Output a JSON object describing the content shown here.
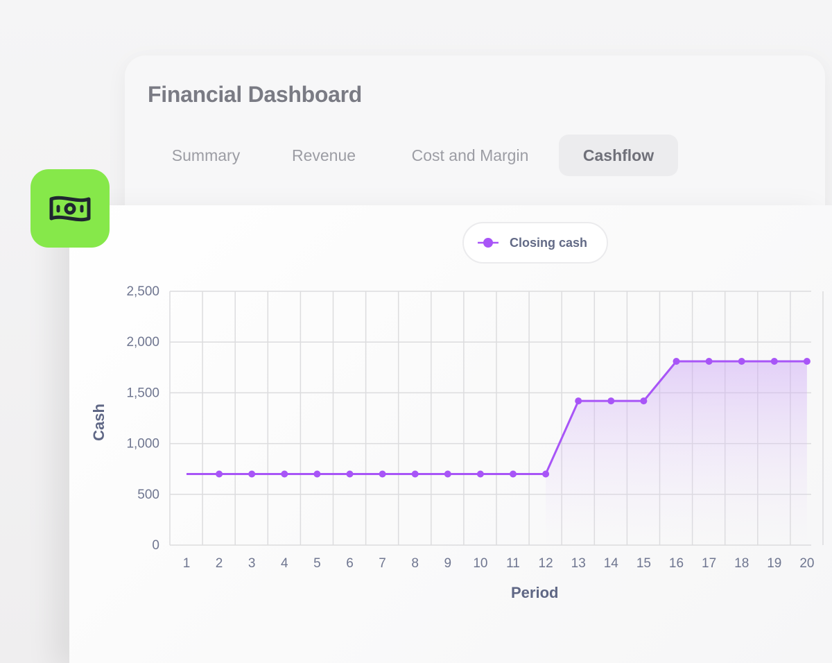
{
  "dashboard": {
    "title": "Financial Dashboard",
    "tabs": [
      {
        "label": "Summary",
        "active": false
      },
      {
        "label": "Revenue",
        "active": false
      },
      {
        "label": "Cost and Margin",
        "active": false
      },
      {
        "label": "Cashflow",
        "active": true
      }
    ],
    "app_icon": "money-bill-icon"
  },
  "colors": {
    "accent": "#a855f7",
    "icon_bg": "#86e84a"
  },
  "chart_data": {
    "type": "area",
    "series": [
      {
        "name": "Closing cash",
        "values": [
          700,
          700,
          700,
          700,
          700,
          700,
          700,
          700,
          700,
          700,
          700,
          700,
          1420,
          1420,
          1420,
          1810,
          1810,
          1810,
          1810,
          1810
        ]
      }
    ],
    "x": [
      1,
      2,
      3,
      4,
      5,
      6,
      7,
      8,
      9,
      10,
      11,
      12,
      13,
      14,
      15,
      16,
      17,
      18,
      19,
      20
    ],
    "x_tick_labels": [
      "1",
      "2",
      "3",
      "4",
      "5",
      "6",
      "7",
      "8",
      "9",
      "10",
      "11",
      "12",
      "13",
      "14",
      "15",
      "16",
      "17",
      "18",
      "19",
      "20"
    ],
    "y_tick_labels": [
      "0",
      "500",
      "1,000",
      "1,500",
      "2,000",
      "2,500"
    ],
    "y_ticks": [
      0,
      500,
      1000,
      1500,
      2000,
      2500
    ],
    "xlabel": "Period",
    "ylabel": "Cash",
    "ylim": [
      0,
      2500
    ],
    "grid": true,
    "legend": "top-center"
  }
}
